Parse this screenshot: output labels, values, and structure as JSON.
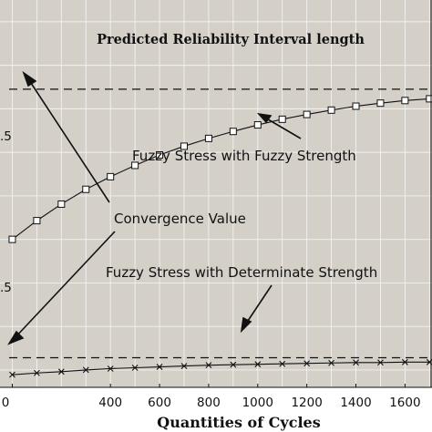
{
  "chart_data": {
    "type": "line",
    "title": "Predicted Reliability Interval length",
    "xlabel": "Quantities of Cycles",
    "ylabel": "",
    "x_tick_labels": [
      "0",
      "400",
      "600",
      "800",
      "1000",
      "1200",
      "1400",
      "1600"
    ],
    "y_tick_labels": [
      ".5",
      ".5"
    ],
    "grid": true,
    "series": [
      {
        "name": "Fuzzy Stress with Fuzzy Strength",
        "marker": "square",
        "x": [
          0,
          100,
          200,
          300,
          400,
          500,
          600,
          700,
          800,
          900,
          1000,
          1100,
          1200,
          1300,
          1400,
          1500,
          1600,
          1700
        ],
        "y": [
          0.2,
          0.243,
          0.281,
          0.315,
          0.344,
          0.37,
          0.394,
          0.414,
          0.432,
          0.448,
          0.463,
          0.476,
          0.487,
          0.497,
          0.506,
          0.513,
          0.519,
          0.523
        ]
      },
      {
        "name": "Fuzzy Stress with Determinate Strength",
        "marker": "x",
        "x": [
          0,
          100,
          200,
          300,
          400,
          500,
          600,
          700,
          800,
          900,
          1000,
          1100,
          1200,
          1300,
          1400,
          1500,
          1600,
          1700
        ],
        "y": [
          -0.111,
          -0.107,
          -0.104,
          -0.1,
          -0.097,
          -0.095,
          -0.093,
          -0.091,
          -0.089,
          -0.088,
          -0.087,
          -0.086,
          -0.085,
          -0.084,
          -0.083,
          -0.083,
          -0.082,
          -0.082
        ]
      }
    ],
    "convergence_lines": [
      0.545,
      -0.072
    ],
    "annotations": {
      "convergence_label": "Convergence Value",
      "fuzzy_strength_label": "Fuzzy Stress with Fuzzy Strength",
      "determinate_strength_label": "Fuzzy Stress with Determinate Strength"
    },
    "xlim": [
      -50,
      1710
    ],
    "ylim": [
      -0.14,
      0.75
    ]
  }
}
